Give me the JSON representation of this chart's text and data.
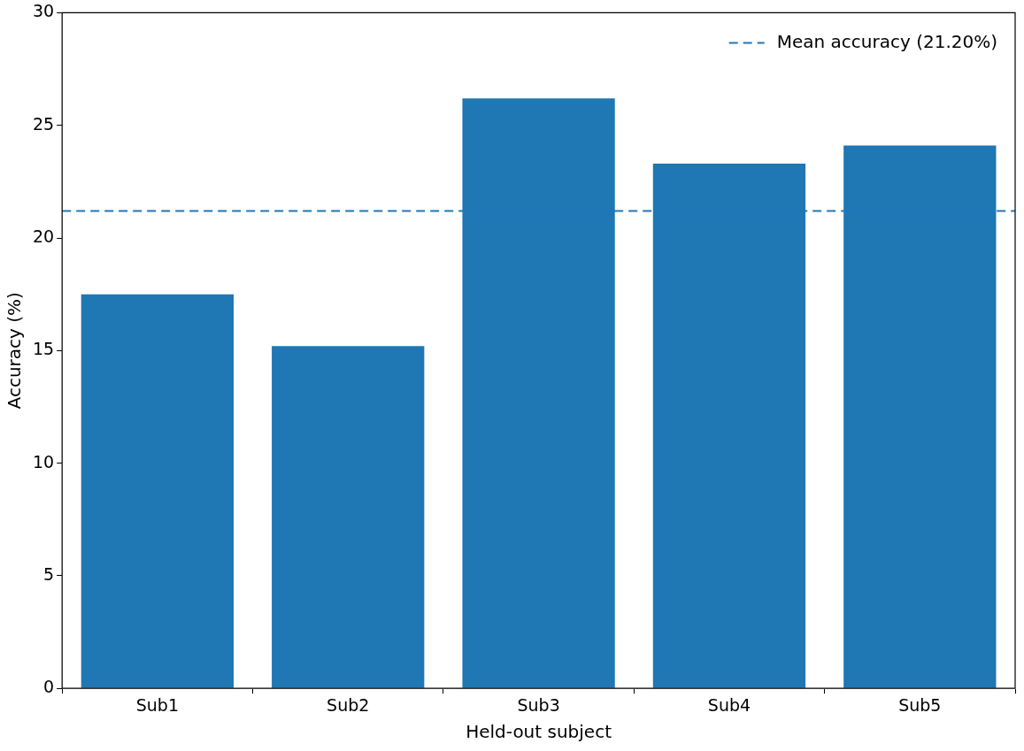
{
  "chart_data": {
    "type": "bar",
    "xlabel": "Held-out subject",
    "ylabel": "Accuracy (%)",
    "categories": [
      "Sub1",
      "Sub2",
      "Sub3",
      "Sub4",
      "Sub5"
    ],
    "values": [
      17.5,
      15.2,
      26.2,
      23.3,
      24.1
    ],
    "color": "#1f77b4",
    "ylim": [
      0,
      30
    ],
    "yticks": [
      0,
      5,
      10,
      15,
      20,
      25,
      30
    ],
    "grid": false,
    "ref_lines": [
      {
        "axis": "y",
        "value": 21.2,
        "label": "Mean accuracy (21.20%)",
        "color": "#1f77b4",
        "line_style": "dashed"
      }
    ],
    "legend": "top right"
  }
}
